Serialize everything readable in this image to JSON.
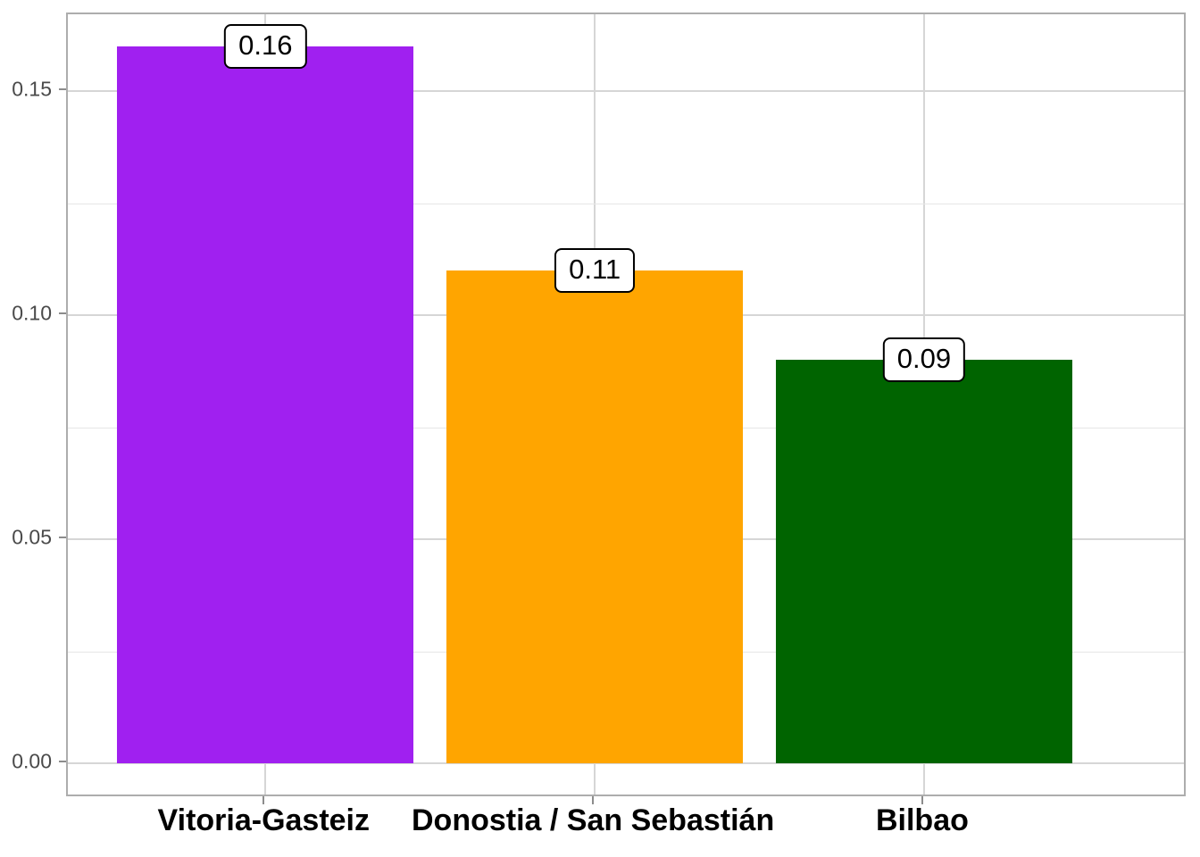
{
  "figure": {
    "background_color": "#FFFFFF",
    "title": "",
    "legend": "none"
  },
  "chart_data": {
    "type": "bar",
    "title": "",
    "xlabel": "",
    "ylabel": "",
    "categories": [
      "Vitoria-Gasteiz",
      "Donostia / San Sebastián",
      "Bilbao"
    ],
    "values": [
      0.16,
      0.11,
      0.09
    ],
    "data_labels": [
      "0.16",
      "0.11",
      "0.09"
    ],
    "bar_colors": [
      "#A020F0",
      "#FFA500",
      "#006400"
    ],
    "ylim": [
      -0.008,
      0.168
    ],
    "yticks": {
      "values": [
        0,
        0.05,
        0.1,
        0.15
      ],
      "labels": [
        "0.00",
        "0.05",
        "0.10",
        "0.15"
      ]
    },
    "minor_yticks": [
      0.025,
      0.075,
      0.125
    ],
    "grid": "horizontal major+minor, vertical major at category centers",
    "style": {
      "panel_border_color": "#ADADAD",
      "grid_major_color": "#D6D6D6",
      "grid_minor_color": "#E6E6E6",
      "tick_mark_color": "#8C8C8C",
      "tick_label_color": "#4A4A4A",
      "x_label_color": "#000000",
      "value_label_fill": "#FFFFFF",
      "value_label_border": "#000000"
    }
  }
}
